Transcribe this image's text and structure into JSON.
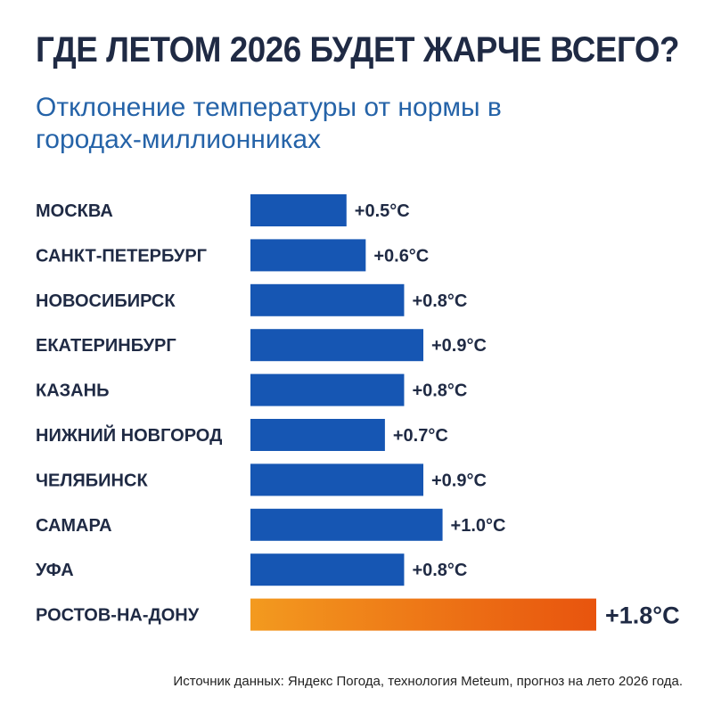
{
  "header": {
    "title": "ГДЕ ЛЕТОМ 2026 БУДЕТ ЖАРЧЕ ВСЕГО?",
    "subtitle": "Отклонение температуры от нормы в городах-миллионниках"
  },
  "footer": {
    "source": "Источник данных: Яндекс Погода, технология Meteum, прогноз на лето 2026 года."
  },
  "colors": {
    "title": "#1f2a44",
    "subtitle": "#2563a8",
    "bar": "#1656b3",
    "highlight_start": "#f39a1f",
    "highlight_end": "#e8540e",
    "highlight_text": "#e85a10"
  },
  "chart_data": {
    "type": "bar",
    "orientation": "horizontal",
    "categories": [
      "МОСКВА",
      "САНКТ-ПЕТЕРБУРГ",
      "НОВОСИБИРСК",
      "ЕКАТЕРИНБУРГ",
      "КАЗАНЬ",
      "НИЖНИЙ НОВГОРОД",
      "ЧЕЛЯБИНСК",
      "САМАРА",
      "УФА",
      "РОСТОВ-НА-ДОНУ"
    ],
    "values": [
      0.5,
      0.6,
      0.8,
      0.9,
      0.8,
      0.7,
      0.9,
      1.0,
      0.8,
      1.8
    ],
    "value_labels": [
      "+0.5°C",
      "+0.6°C",
      "+0.8°C",
      "+0.9°C",
      "+0.8°C",
      "+0.7°C",
      "+0.9°C",
      "+1.0°C",
      "+0.8°C",
      "+1.8°C"
    ],
    "highlight_index": 9,
    "xlim": [
      0,
      1.8
    ],
    "grid": false,
    "legend": "none"
  }
}
